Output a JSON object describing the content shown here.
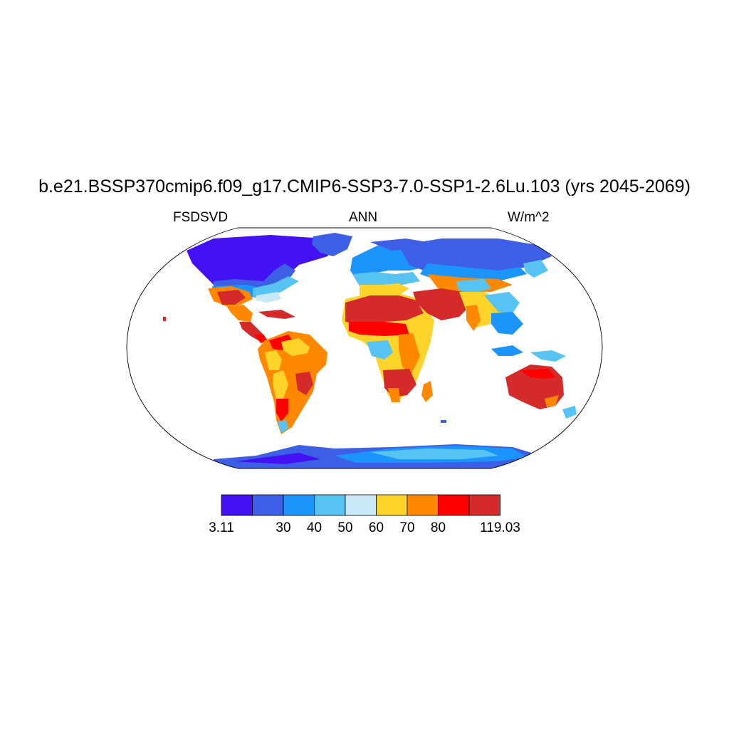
{
  "title": "b.e21.BSSP370cmip6.f09_g17.CMIP6-SSP3-7.0-SSP1-2.6Lu.103 (yrs 2045-2069)",
  "left_string": "FSDSVD",
  "center_string": "ANN",
  "right_string": "W/m^2",
  "map": {
    "projection": "robinson",
    "variable": "FSDSVD",
    "units": "W/m^2",
    "season": "ANN",
    "ocean_masked": true
  },
  "colorbar": {
    "colors": [
      "#4411f2",
      "#3d5fe6",
      "#1b94fb",
      "#56c3f3",
      "#c8e7f7",
      "#ffd42a",
      "#ff8800",
      "#ff0000",
      "#d42a2a"
    ],
    "labels": [
      "3.11",
      "30",
      "40",
      "50",
      "60",
      "70",
      "80",
      "119.03"
    ],
    "label_boundaries": [
      0,
      2,
      3,
      4,
      5,
      6,
      7,
      9
    ]
  }
}
